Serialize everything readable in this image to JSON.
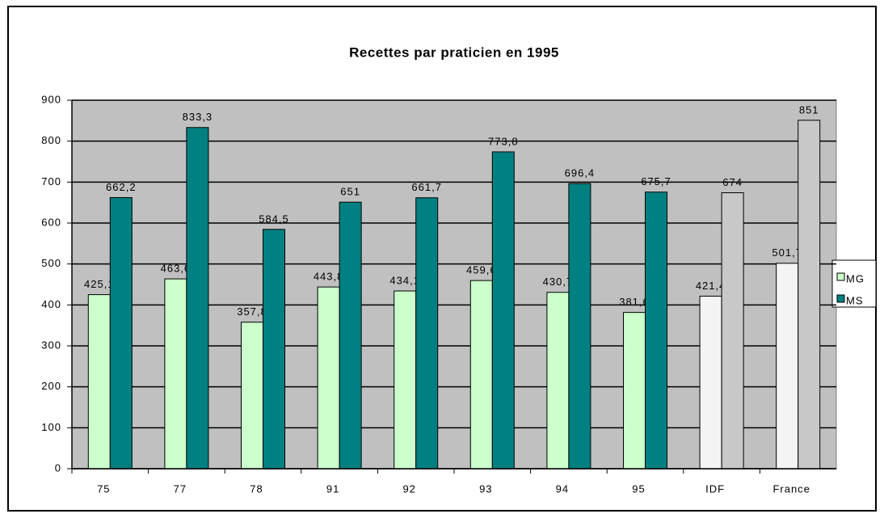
{
  "chart_data": {
    "type": "bar",
    "title": "Recettes par praticien en 1995",
    "categories": [
      "75",
      "77",
      "78",
      "91",
      "92",
      "93",
      "94",
      "95",
      "IDF",
      "France"
    ],
    "series": [
      {
        "name": "MG",
        "color": "#ccffcc",
        "colors": [
          "#ccffcc",
          "#ccffcc",
          "#ccffcc",
          "#ccffcc",
          "#ccffcc",
          "#ccffcc",
          "#ccffcc",
          "#ccffcc",
          "#f4f4f4",
          "#f4f4f4"
        ],
        "values": [
          425.1,
          463.6,
          357.8,
          443.8,
          434.1,
          459.6,
          430.7,
          381.6,
          421.4,
          501.7
        ],
        "value_labels": [
          "425,1",
          "463,6",
          "357,8",
          "443,8",
          "434,1",
          "459,6",
          "430,7",
          "381,6",
          "421,4",
          "501,7"
        ]
      },
      {
        "name": "MS",
        "color": "#008080",
        "colors": [
          "#008080",
          "#008080",
          "#008080",
          "#008080",
          "#008080",
          "#008080",
          "#008080",
          "#008080",
          "#c8c8c8",
          "#c8c8c8"
        ],
        "values": [
          662.2,
          833.3,
          584.5,
          651,
          661.7,
          773.8,
          696.4,
          675.7,
          674,
          851
        ],
        "value_labels": [
          "662,2",
          "833,3",
          "584,5",
          "651",
          "661,7",
          "773,8",
          "696,4",
          "675,7",
          "674",
          "851"
        ]
      }
    ],
    "ylim": [
      0,
      900
    ],
    "yticks": [
      0,
      100,
      200,
      300,
      400,
      500,
      600,
      700,
      800,
      900
    ],
    "grid": true
  }
}
